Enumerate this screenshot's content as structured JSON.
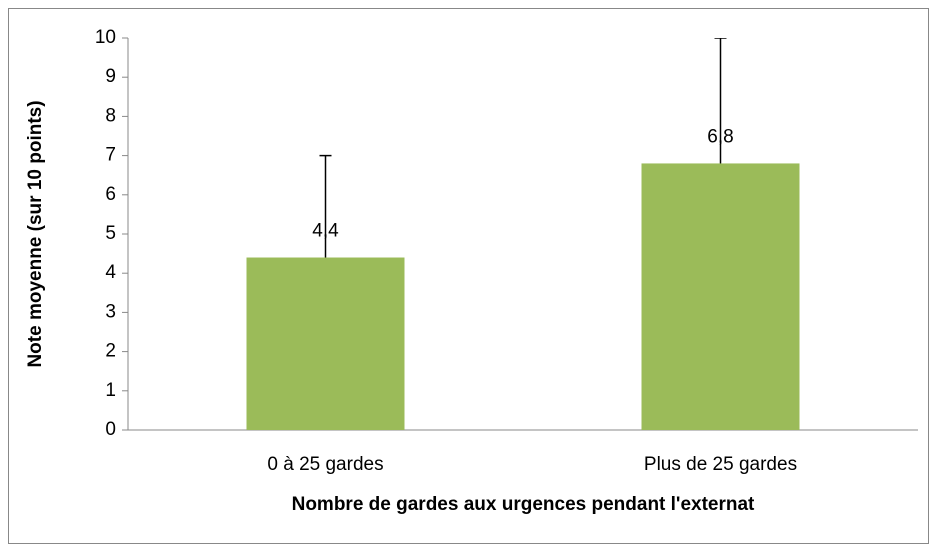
{
  "chart_data": {
    "type": "bar",
    "categories": [
      "0 à 25 gardes",
      "Plus de 25 gardes"
    ],
    "values": [
      4.4,
      6.8
    ],
    "value_labels": [
      "4,4",
      "6,8"
    ],
    "errors": [
      2.6,
      3.2
    ],
    "color": "#9bbb59",
    "x_label": "Nombre de gardes aux urgences pendant l'externat",
    "y_label": "Note moyenne (sur 10 points)",
    "ylim": [
      0,
      10
    ],
    "yticks": [
      0,
      1,
      2,
      3,
      4,
      5,
      6,
      7,
      8,
      9,
      10
    ],
    "grid": false
  }
}
